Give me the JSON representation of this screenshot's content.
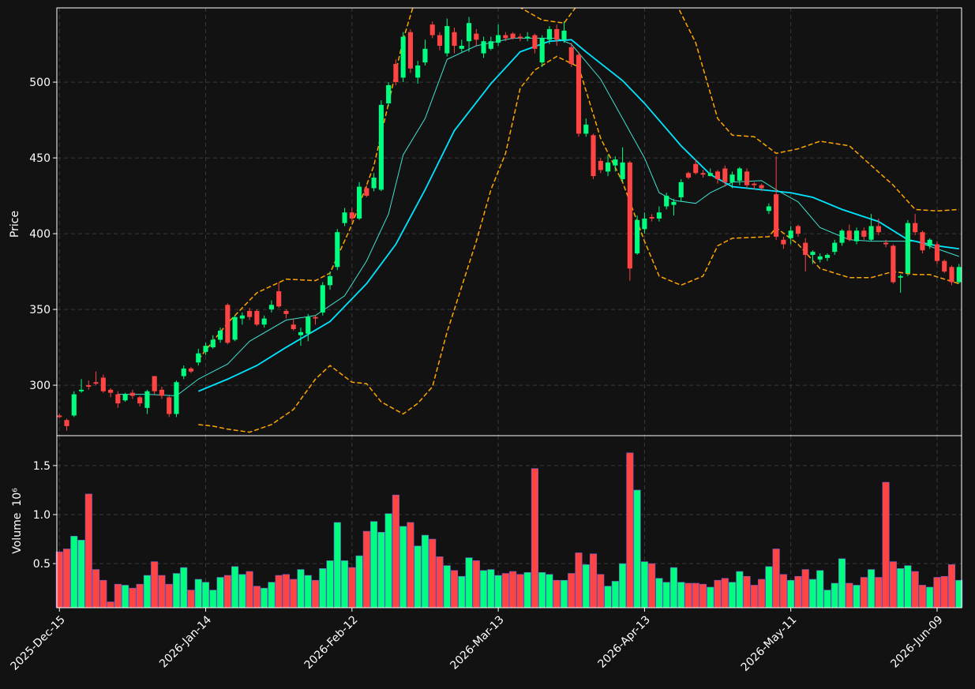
{
  "chart_data": [
    {
      "type": "candlestick",
      "ylabel": "Price",
      "up_color": "#00ff80",
      "down_color": "#ff4444",
      "grid": true,
      "ylim": [
        266.7,
        549
      ],
      "yticks": [
        300,
        350,
        400,
        450,
        500
      ],
      "open": [
        280,
        277,
        280,
        296,
        300,
        302,
        305,
        297,
        294,
        290,
        295,
        292,
        285,
        306,
        297,
        292,
        281,
        306,
        311,
        315,
        322,
        325,
        330,
        353,
        330,
        344,
        349,
        349,
        340,
        350,
        362,
        349,
        340,
        333,
        334,
        345,
        348,
        366,
        378,
        407,
        414,
        410,
        430,
        430,
        429,
        486,
        512,
        503,
        533,
        503,
        513,
        538,
        531,
        519,
        533,
        522,
        527,
        532,
        519,
        522,
        526,
        531,
        532,
        530,
        529,
        531,
        513,
        528,
        535,
        528,
        523,
        518,
        466,
        465,
        448,
        441,
        445,
        436,
        447,
        387,
        403,
        411,
        410,
        418,
        419,
        424,
        440,
        446,
        440,
        438,
        441,
        443,
        434,
        435,
        441,
        433,
        432,
        415,
        426,
        396,
        397,
        405,
        394,
        386,
        383,
        384,
        388,
        394,
        402,
        395,
        402,
        396,
        405,
        394,
        392,
        371,
        374,
        407,
        401,
        392,
        393,
        382,
        378,
        368
      ],
      "high": [
        281,
        278,
        296,
        304,
        303,
        309,
        307,
        298,
        296,
        295,
        297,
        293,
        297,
        306,
        299,
        293,
        303,
        313,
        312,
        324,
        328,
        333,
        338,
        354,
        346,
        348,
        351,
        350,
        346,
        356,
        368,
        350,
        344,
        338,
        347,
        346,
        368,
        375,
        403,
        417,
        417,
        434,
        432,
        440,
        488,
        500,
        515,
        533,
        535,
        514,
        528,
        540,
        533,
        542,
        536,
        528,
        543,
        535,
        530,
        530,
        538,
        533,
        533,
        532,
        533,
        532,
        531,
        537,
        538,
        540,
        526,
        520,
        476,
        466,
        450,
        452,
        451,
        457,
        448,
        412,
        414,
        413,
        418,
        427,
        423,
        436,
        441,
        449,
        442,
        443,
        442,
        445,
        441,
        444,
        443,
        434,
        433,
        420,
        451,
        398,
        405,
        406,
        397,
        389,
        387,
        387,
        396,
        403,
        406,
        404,
        404,
        413,
        410,
        396,
        393,
        373,
        409,
        413,
        402,
        397,
        395,
        383,
        379,
        380
      ],
      "low": [
        278,
        270,
        279,
        295,
        297,
        300,
        295,
        292,
        285,
        289,
        291,
        286,
        281,
        294,
        291,
        279,
        279,
        304,
        308,
        313,
        320,
        324,
        328,
        327,
        329,
        340,
        343,
        339,
        338,
        348,
        351,
        344,
        336,
        326,
        329,
        340,
        346,
        363,
        376,
        405,
        408,
        409,
        424,
        428,
        428,
        484,
        498,
        500,
        506,
        499,
        511,
        529,
        521,
        517,
        519,
        520,
        520,
        524,
        516,
        521,
        524,
        527,
        528,
        527,
        527,
        519,
        510,
        525,
        524,
        526,
        510,
        464,
        464,
        436,
        440,
        438,
        441,
        434,
        369,
        386,
        400,
        408,
        408,
        416,
        412,
        421,
        436,
        439,
        437,
        438,
        433,
        431,
        430,
        432,
        430,
        429,
        428,
        413,
        396,
        390,
        393,
        398,
        375,
        380,
        381,
        382,
        386,
        392,
        395,
        393,
        396,
        395,
        399,
        391,
        367,
        361,
        372,
        399,
        387,
        390,
        380,
        374,
        366,
        367
      ],
      "close": [
        279,
        273,
        294,
        297,
        299,
        301,
        296,
        295,
        288,
        294,
        293,
        288,
        296,
        296,
        293,
        281,
        302,
        311,
        309,
        321,
        326,
        330,
        336,
        328,
        345,
        346,
        345,
        340,
        344,
        353,
        352,
        347,
        337,
        335,
        345,
        344,
        366,
        372,
        401,
        414,
        410,
        431,
        425,
        437,
        485,
        498,
        500,
        530,
        509,
        511,
        522,
        531,
        524,
        537,
        524,
        524,
        539,
        528,
        527,
        527,
        531,
        529,
        529,
        529,
        530,
        522,
        529,
        535,
        528,
        534,
        512,
        466,
        472,
        438,
        442,
        447,
        449,
        447,
        377,
        409,
        410,
        410,
        414,
        425,
        421,
        434,
        437,
        440,
        439,
        440,
        436,
        434,
        439,
        443,
        432,
        432,
        430,
        418,
        398,
        393,
        402,
        400,
        386,
        388,
        385,
        386,
        394,
        402,
        396,
        402,
        398,
        405,
        401,
        393,
        368,
        372,
        407,
        401,
        389,
        396,
        382,
        375,
        368,
        378
      ],
      "overlays": [
        {
          "type": "line",
          "color": "#40e0d0",
          "width": 1,
          "linestyle": "solid",
          "x": [
            8,
            12,
            16,
            19,
            23,
            26,
            31,
            35,
            39,
            42,
            45,
            47,
            50,
            53,
            57,
            62,
            68,
            70,
            74,
            77,
            80,
            82,
            84,
            87,
            89,
            92,
            96,
            98,
            101,
            104,
            108,
            111,
            114,
            117,
            120,
            123
          ],
          "values": [
            294,
            294,
            293,
            304,
            314,
            329,
            343,
            346,
            359,
            382,
            413,
            452,
            476,
            515,
            524,
            529,
            529,
            525,
            502,
            476,
            450,
            427,
            422,
            420,
            427,
            434,
            435,
            429,
            421,
            404,
            396,
            395,
            395,
            395,
            390,
            385
          ]
        },
        {
          "type": "line",
          "color": "#00e5ff",
          "width": 1.8,
          "linestyle": "solid",
          "x": [
            19,
            23,
            27,
            31,
            37,
            42,
            46,
            50,
            54,
            59,
            63,
            67,
            70,
            72,
            77,
            80,
            85,
            89,
            92,
            96,
            100,
            103,
            107,
            112,
            116,
            120,
            123
          ],
          "values": [
            296,
            304,
            313,
            325,
            342,
            367,
            393,
            429,
            468,
            499,
            520,
            527,
            528,
            520,
            501,
            486,
            458,
            439,
            431,
            429,
            427,
            424,
            416,
            408,
            396,
            392,
            390
          ]
        },
        {
          "type": "line",
          "color": "#ffa500",
          "width": 1.5,
          "linestyle": "dashed",
          "x": [
            19,
            23,
            27,
            31,
            35,
            37,
            40,
            43,
            45,
            47,
            49,
            53,
            57,
            62,
            66,
            69,
            71,
            75,
            80,
            84,
            87,
            90,
            92,
            95,
            98,
            101,
            104,
            108,
            111,
            114,
            117,
            120,
            123
          ],
          "values": [
            317,
            341,
            361,
            370,
            369,
            374,
            406,
            445,
            486,
            528,
            560,
            575,
            570,
            552,
            541,
            539,
            552,
            575,
            570,
            555,
            526,
            476,
            465,
            464,
            453,
            456,
            461,
            458,
            445,
            432,
            416,
            415,
            416
          ]
        },
        {
          "type": "line",
          "color": "#ffa500",
          "width": 1.5,
          "linestyle": "dashed",
          "x": [
            19,
            21,
            23,
            26,
            29,
            32,
            35,
            37,
            40,
            42,
            44,
            47,
            49,
            51,
            53,
            57,
            59,
            61,
            63,
            65,
            68,
            71,
            74,
            77,
            80,
            82,
            85,
            88,
            90,
            92,
            97,
            98,
            101,
            104,
            108,
            111,
            114,
            117,
            119,
            123
          ],
          "values": [
            274,
            273,
            271,
            269,
            274,
            284,
            304,
            313,
            302,
            301,
            289,
            281,
            288,
            299,
            335,
            395,
            429,
            453,
            496,
            508,
            517,
            510,
            463,
            434,
            395,
            372,
            366,
            372,
            392,
            397,
            398,
            404,
            393,
            377,
            371,
            371,
            375,
            373,
            373,
            367
          ]
        }
      ]
    },
    {
      "type": "bar",
      "ylabel": "Volume",
      "y_offset_text": "10⁶",
      "grid": true,
      "ylim": [
        0.05,
        1.805
      ],
      "yticks": [
        0.5,
        {
          "value": 1,
          "label": "1.0"
        },
        1.5
      ],
      "categories": [
        "2025-Dec-15",
        null,
        null,
        null,
        null,
        null,
        null,
        null,
        null,
        null,
        null,
        null,
        null,
        null,
        null,
        null,
        null,
        null,
        null,
        null,
        "2026-Jan-14",
        null,
        null,
        null,
        null,
        null,
        null,
        null,
        null,
        null,
        null,
        null,
        null,
        null,
        null,
        null,
        null,
        null,
        null,
        null,
        "2026-Feb-12",
        null,
        null,
        null,
        null,
        null,
        null,
        null,
        null,
        null,
        null,
        null,
        null,
        null,
        null,
        null,
        null,
        null,
        null,
        null,
        "2026-Mar-13",
        null,
        null,
        null,
        null,
        null,
        null,
        null,
        null,
        null,
        null,
        null,
        null,
        null,
        null,
        null,
        null,
        null,
        null,
        null,
        "2026-Apr-13",
        null,
        null,
        null,
        null,
        null,
        null,
        null,
        null,
        null,
        null,
        null,
        null,
        null,
        null,
        null,
        null,
        null,
        null,
        null,
        "2026-May-11",
        null,
        null,
        null,
        null,
        null,
        null,
        null,
        null,
        null,
        null,
        null,
        null,
        null,
        null,
        null,
        null,
        null,
        null,
        null,
        "2026-Jun-09",
        null,
        null,
        null
      ],
      "values": [
        0.62,
        0.65,
        0.78,
        0.74,
        1.21,
        0.44,
        0.33,
        0.11,
        0.29,
        0.28,
        0.25,
        0.29,
        0.38,
        0.52,
        0.38,
        0.29,
        0.4,
        0.46,
        0.23,
        0.34,
        0.31,
        0.23,
        0.36,
        0.38,
        0.47,
        0.39,
        0.42,
        0.27,
        0.25,
        0.31,
        0.38,
        0.39,
        0.34,
        0.44,
        0.38,
        0.33,
        0.45,
        0.53,
        0.92,
        0.53,
        0.46,
        0.58,
        0.83,
        0.93,
        0.82,
        1.01,
        1.2,
        0.88,
        0.92,
        0.68,
        0.79,
        0.75,
        0.57,
        0.48,
        0.43,
        0.37,
        0.56,
        0.53,
        0.43,
        0.44,
        0.38,
        0.4,
        0.42,
        0.39,
        0.41,
        1.47,
        0.41,
        0.39,
        0.33,
        0.33,
        0.4,
        0.61,
        0.49,
        0.6,
        0.39,
        0.27,
        0.32,
        0.5,
        1.63,
        1.25,
        0.52,
        0.5,
        0.35,
        0.31,
        0.46,
        0.31,
        0.3,
        0.3,
        0.29,
        0.26,
        0.33,
        0.35,
        0.31,
        0.42,
        0.37,
        0.28,
        0.34,
        0.47,
        0.65,
        0.39,
        0.33,
        0.37,
        0.44,
        0.34,
        0.43,
        0.23,
        0.3,
        0.55,
        0.3,
        0.28,
        0.36,
        0.44,
        0.36,
        1.33,
        0.52,
        0.45,
        0.48,
        0.42,
        0.28,
        0.26,
        0.36,
        0.37,
        0.49,
        0.33
      ]
    }
  ]
}
